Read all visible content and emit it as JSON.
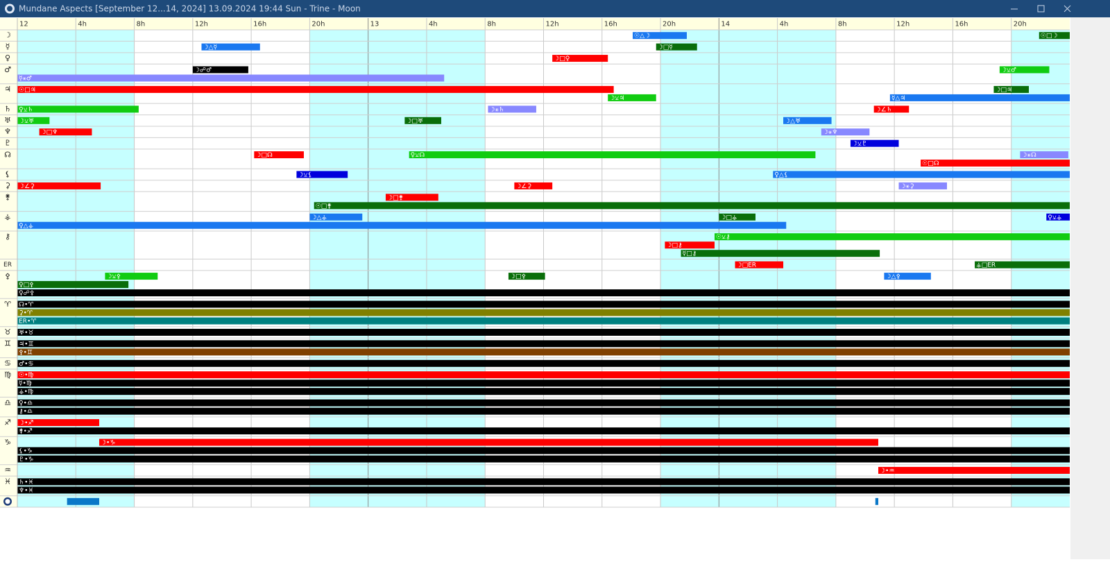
{
  "window": {
    "title": "Mundane Aspects [September 12...14, 2024]  13.09.2024 19:44  Sun - Trine - Moon"
  },
  "time_axis": {
    "hours_total": 72,
    "labels": [
      {
        "hour": 0,
        "label": "12"
      },
      {
        "hour": 4,
        "label": "4h"
      },
      {
        "hour": 8,
        "label": "8h"
      },
      {
        "hour": 12,
        "label": "12h"
      },
      {
        "hour": 16,
        "label": "16h"
      },
      {
        "hour": 20,
        "label": "20h"
      },
      {
        "hour": 24,
        "label": "13"
      },
      {
        "hour": 28,
        "label": "4h"
      },
      {
        "hour": 32,
        "label": "8h"
      },
      {
        "hour": 36,
        "label": "12h"
      },
      {
        "hour": 40,
        "label": "16h"
      },
      {
        "hour": 44,
        "label": "20h"
      },
      {
        "hour": 48,
        "label": "14"
      },
      {
        "hour": 52,
        "label": "4h"
      },
      {
        "hour": 56,
        "label": "8h"
      },
      {
        "hour": 60,
        "label": "12h"
      },
      {
        "hour": 64,
        "label": "16h"
      },
      {
        "hour": 68,
        "label": "20h"
      }
    ]
  },
  "rows": [
    {
      "glyph": "☽",
      "lanes": [
        [
          {
            "label": "☉△☽",
            "start": 42.1,
            "end": 45.8,
            "color": "#1a78f0"
          },
          {
            "label": "☉□☽",
            "start": 69.9,
            "end": 72,
            "color": "#0a6e0a"
          }
        ]
      ]
    },
    {
      "glyph": "☿",
      "lanes": [
        [
          {
            "label": "☽△☿",
            "start": 12.6,
            "end": 16.6,
            "color": "#1a78f0"
          },
          {
            "label": "☽□☿",
            "start": 43.7,
            "end": 46.5,
            "color": "#0a6e0a"
          }
        ]
      ]
    },
    {
      "glyph": "♀",
      "lanes": [
        [
          {
            "label": "☽□♀",
            "start": 36.6,
            "end": 40.4,
            "color": "#ff0000"
          }
        ]
      ]
    },
    {
      "glyph": "♂",
      "lanes": [
        [
          {
            "label": "☽☍♂",
            "start": 12,
            "end": 15.8,
            "color": "#000000"
          },
          {
            "label": "☽⚺♂",
            "start": 67.2,
            "end": 70.6,
            "color": "#11cc11"
          }
        ],
        [
          {
            "label": "☿⚹♂",
            "start": 0,
            "end": 29.2,
            "color": "#8888ff"
          }
        ]
      ]
    },
    {
      "glyph": "♃",
      "lanes": [
        [
          {
            "label": "☉□♃",
            "start": 0,
            "end": 40.8,
            "color": "#ff0000"
          },
          {
            "label": "☽□♃",
            "start": 66.8,
            "end": 69.2,
            "color": "#0a6e0a"
          }
        ],
        [
          {
            "label": "☽⚺♃",
            "start": 40.4,
            "end": 43.7,
            "color": "#11cc11"
          },
          {
            "label": "☿△♃",
            "start": 59.7,
            "end": 72,
            "color": "#1a78f0"
          }
        ]
      ]
    },
    {
      "glyph": "♄",
      "lanes": [
        [
          {
            "label": "♀⚺♄",
            "start": 0,
            "end": 8.3,
            "color": "#11cc11"
          },
          {
            "label": "☽⚹♄",
            "start": 32.2,
            "end": 35.5,
            "color": "#8888ff"
          },
          {
            "label": "☽∠♄",
            "start": 58.6,
            "end": 61,
            "color": "#ff0000"
          }
        ]
      ]
    },
    {
      "glyph": "♅",
      "lanes": [
        [
          {
            "label": "☽⚺♅",
            "start": 0,
            "end": 2.2,
            "color": "#11cc11"
          },
          {
            "label": "☽□♅",
            "start": 26.5,
            "end": 29,
            "color": "#0a6e0a"
          },
          {
            "label": "☽△♅",
            "start": 52.4,
            "end": 55.7,
            "color": "#1a78f0"
          }
        ]
      ]
    },
    {
      "glyph": "♆",
      "lanes": [
        [
          {
            "label": "☽□♆",
            "start": 1.5,
            "end": 5.1,
            "color": "#ff0000"
          },
          {
            "label": "☽⚹♆",
            "start": 55,
            "end": 58.3,
            "color": "#8888ff"
          }
        ]
      ]
    },
    {
      "glyph": "♇",
      "lanes": [
        [
          {
            "label": "☽⚺♇",
            "start": 57,
            "end": 60.3,
            "color": "#0000dd"
          }
        ]
      ]
    },
    {
      "glyph": "☊",
      "lanes": [
        [
          {
            "label": "☽□☊",
            "start": 16.2,
            "end": 19.6,
            "color": "#ff0000"
          },
          {
            "label": "♀⚺☊",
            "start": 26.8,
            "end": 54.6,
            "color": "#11cc11"
          },
          {
            "label": "☽⚹☊",
            "start": 68.6,
            "end": 71.9,
            "color": "#8888ff"
          }
        ],
        [
          {
            "label": "☉□☊",
            "start": 61.8,
            "end": 72,
            "color": "#ff0000"
          }
        ]
      ]
    },
    {
      "glyph": "⚸",
      "lanes": [
        [
          {
            "label": "☽⚺⚸",
            "start": 19.1,
            "end": 22.6,
            "color": "#0000dd"
          },
          {
            "label": "♀△⚸",
            "start": 51.7,
            "end": 72,
            "color": "#1a78f0"
          }
        ]
      ]
    },
    {
      "glyph": "⚳",
      "lanes": [
        [
          {
            "label": "☽∠⚳",
            "start": 0,
            "end": 5.7,
            "color": "#ff0000"
          },
          {
            "label": "☽∠⚳",
            "start": 34,
            "end": 36.6,
            "color": "#ff0000"
          },
          {
            "label": "☽⚹⚳",
            "start": 60.3,
            "end": 63.6,
            "color": "#8888ff"
          }
        ]
      ]
    },
    {
      "glyph": "⚵",
      "lanes": [
        [
          {
            "label": "☽□⚵",
            "start": 25.2,
            "end": 28.8,
            "color": "#ff0000"
          }
        ],
        [
          {
            "label": "☉□⚵",
            "start": 20.3,
            "end": 72,
            "color": "#0a6e0a"
          }
        ]
      ]
    },
    {
      "glyph": "⚶",
      "lanes": [
        [
          {
            "label": "☽△⚶",
            "start": 20,
            "end": 23.6,
            "color": "#1a78f0"
          },
          {
            "label": "☽□⚶",
            "start": 48,
            "end": 50.5,
            "color": "#0a6e0a"
          },
          {
            "label": "♀⚺⚶",
            "start": 70.4,
            "end": 72,
            "color": "#0000dd"
          }
        ],
        [
          {
            "label": "♀△⚶",
            "start": 0,
            "end": 52.6,
            "color": "#1a78f0"
          }
        ]
      ]
    },
    {
      "glyph": "⚷",
      "lanes": [
        [
          {
            "label": "☉⚺⚷",
            "start": 47.7,
            "end": 72,
            "color": "#11cc11"
          }
        ],
        [
          {
            "label": "☽□⚷",
            "start": 44.3,
            "end": 47.7,
            "color": "#ff0000"
          }
        ],
        [
          {
            "label": "☿□⚷",
            "start": 45.4,
            "end": 59,
            "color": "#0a6e0a"
          }
        ]
      ]
    },
    {
      "glyph": "ER",
      "lanes": [
        [
          {
            "label": "☽□ER",
            "start": 49.1,
            "end": 52.4,
            "color": "#ff0000"
          },
          {
            "label": "⚶□ER",
            "start": 65.5,
            "end": 72,
            "color": "#0a6e0a"
          }
        ]
      ]
    },
    {
      "glyph": "⚴",
      "lanes": [
        [
          {
            "label": "☽⚺⚴",
            "start": 6,
            "end": 9.6,
            "color": "#11cc11"
          },
          {
            "label": "☽□⚴",
            "start": 33.6,
            "end": 36.1,
            "color": "#0a6e0a"
          },
          {
            "label": "☽△⚴",
            "start": 59.3,
            "end": 62.5,
            "color": "#1a78f0"
          }
        ],
        [
          {
            "label": "♀□⚴",
            "start": 0,
            "end": 7.6,
            "color": "#0a6e0a"
          }
        ],
        [
          {
            "label": "♀☍⚴",
            "start": 0,
            "end": 72,
            "color": "#000000"
          }
        ]
      ]
    },
    {
      "glyph": "♈",
      "lanes": [
        [
          {
            "label": "☊•♈",
            "start": 0,
            "end": 72,
            "color": "#000000"
          }
        ],
        [
          {
            "label": "⚳•♈",
            "start": 0,
            "end": 72,
            "color": "#808000"
          }
        ],
        [
          {
            "label": "ER•♈",
            "start": 0,
            "end": 72,
            "color": "#008080"
          }
        ]
      ]
    },
    {
      "glyph": "♉",
      "lanes": [
        [
          {
            "label": "♅•♉",
            "start": 0,
            "end": 72,
            "color": "#000000"
          }
        ]
      ]
    },
    {
      "glyph": "♊",
      "lanes": [
        [
          {
            "label": "♃•♊",
            "start": 0,
            "end": 72,
            "color": "#000000"
          }
        ],
        [
          {
            "label": "⚴•♊",
            "start": 0,
            "end": 72,
            "color": "#804000"
          }
        ]
      ]
    },
    {
      "glyph": "♋",
      "lanes": [
        [
          {
            "label": "♂•♋",
            "start": 0,
            "end": 72,
            "color": "#000000"
          }
        ]
      ]
    },
    {
      "glyph": "♍",
      "lanes": [
        [
          {
            "label": "☉•♍",
            "start": 0,
            "end": 72,
            "color": "#ff0000"
          }
        ],
        [
          {
            "label": "☿•♍",
            "start": 0,
            "end": 72,
            "color": "#000000"
          }
        ],
        [
          {
            "label": "⚶•♍",
            "start": 0,
            "end": 72,
            "color": "#000000"
          }
        ]
      ]
    },
    {
      "glyph": "♎",
      "lanes": [
        [
          {
            "label": "♀•♎",
            "start": 0,
            "end": 72,
            "color": "#000000"
          }
        ],
        [
          {
            "label": "⚷•♎",
            "start": 0,
            "end": 72,
            "color": "#000000"
          }
        ]
      ]
    },
    {
      "glyph": "♐",
      "lanes": [
        [
          {
            "label": "☽•♐",
            "start": 0,
            "end": 5.6,
            "color": "#ff0000"
          }
        ],
        [
          {
            "label": "⚵•♐",
            "start": 0,
            "end": 72,
            "color": "#000000"
          }
        ]
      ]
    },
    {
      "glyph": "♑",
      "lanes": [
        [
          {
            "label": "☽•♑",
            "start": 5.6,
            "end": 58.9,
            "color": "#ff0000"
          }
        ],
        [
          {
            "label": "⚸•♑",
            "start": 0,
            "end": 72,
            "color": "#000000"
          }
        ],
        [
          {
            "label": "♇•♑",
            "start": 0,
            "end": 72,
            "color": "#000000"
          }
        ]
      ]
    },
    {
      "glyph": "♒",
      "lanes": [
        [
          {
            "label": "☽•♒",
            "start": 58.9,
            "end": 72,
            "color": "#ff0000"
          }
        ]
      ]
    },
    {
      "glyph": "♓",
      "lanes": [
        [
          {
            "label": "♄•♓",
            "start": 0,
            "end": 72,
            "color": "#000000"
          }
        ],
        [
          {
            "label": "♆•♓",
            "start": 0,
            "end": 72,
            "color": "#000000"
          }
        ]
      ]
    },
    {
      "lanes": [
        [
          {
            "start": 3.4,
            "end": 5.6,
            "color": "#0a78c8"
          },
          {
            "start": 58.7,
            "end": 58.9,
            "color": "#0a78c8"
          }
        ]
      ]
    }
  ]
}
